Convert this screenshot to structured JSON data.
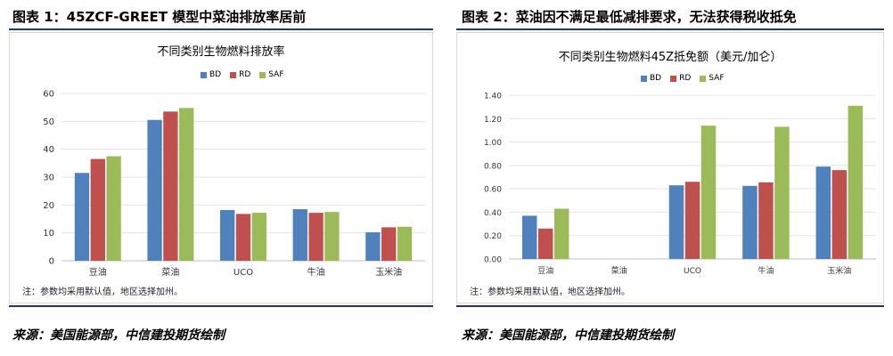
{
  "figures": [
    {
      "label": "图表 1：45ZCF-GREET 模型中菜油排放率居前",
      "note": "注：参数均采用默认值，地区选择加州。",
      "source": "来源：美国能源部，中信建投期货绘制"
    },
    {
      "label": "图表 2：菜油因不满足最低减排要求，无法获得税收抵免",
      "note": "注：参数均采用默认值，地区选择加州。",
      "source": "来源：美国能源部，中信建投期货绘制"
    }
  ],
  "chart_data": [
    {
      "type": "bar",
      "title": "不同类别生物燃料排放率",
      "categories": [
        "豆油",
        "菜油",
        "UCO",
        "牛油",
        "玉米油"
      ],
      "series": [
        {
          "name": "BD",
          "values": [
            31.5,
            50.5,
            18.2,
            18.5,
            10.2
          ],
          "color": "#4f81bd"
        },
        {
          "name": "RD",
          "values": [
            36.5,
            53.5,
            16.8,
            17.2,
            12.0
          ],
          "color": "#c0504d"
        },
        {
          "name": "SAF",
          "values": [
            37.5,
            54.8,
            17.2,
            17.5,
            12.2
          ],
          "color": "#9bbb59"
        }
      ],
      "ylim": [
        0,
        60
      ],
      "yticks": [
        "0",
        "10",
        "20",
        "30",
        "40",
        "50",
        "60"
      ],
      "ytick_values": [
        0,
        10,
        20,
        30,
        40,
        50,
        60
      ],
      "grid": true,
      "legend_position": "top-center"
    },
    {
      "type": "bar",
      "title": "不同类别生物燃料45Z抵免额（美元/加仑）",
      "categories": [
        "豆油",
        "菜油",
        "UCO",
        "牛油",
        "玉米油"
      ],
      "series": [
        {
          "name": "BD",
          "values": [
            0.37,
            0,
            0.63,
            0.625,
            0.79
          ],
          "color": "#4f81bd"
        },
        {
          "name": "RD",
          "values": [
            0.26,
            0,
            0.66,
            0.655,
            0.76
          ],
          "color": "#c0504d"
        },
        {
          "name": "SAF",
          "values": [
            0.43,
            0,
            1.14,
            1.13,
            1.31
          ],
          "color": "#9bbb59"
        }
      ],
      "ylim": [
        0,
        1.4
      ],
      "yticks": [
        "0.00",
        "0.20",
        "0.40",
        "0.60",
        "0.80",
        "1.00",
        "1.20",
        "1.40"
      ],
      "ytick_values": [
        0,
        0.2,
        0.4,
        0.6,
        0.8,
        1.0,
        1.2,
        1.4
      ],
      "grid": true,
      "legend_position": "top-center"
    }
  ]
}
